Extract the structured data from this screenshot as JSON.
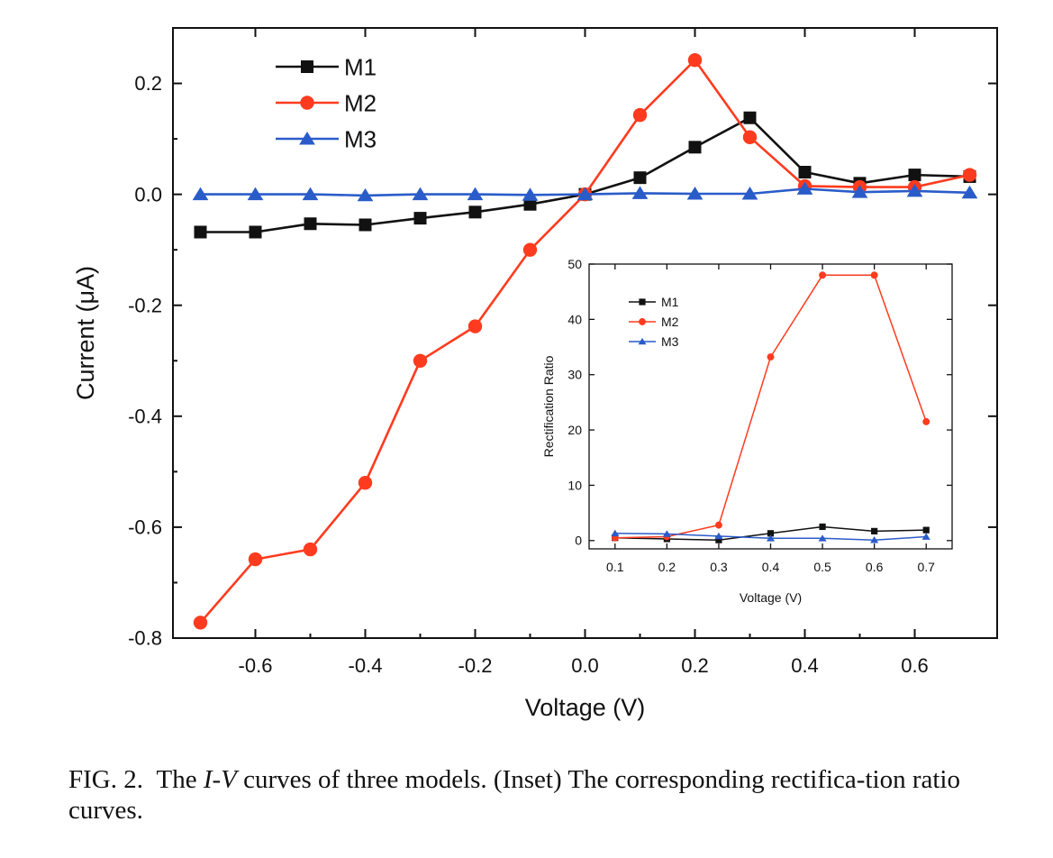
{
  "chart_data": [
    {
      "type": "line",
      "xlabel": "Voltage (V)",
      "ylabel": "Current (μA)",
      "xlim": [
        -0.75,
        0.75
      ],
      "ylim": [
        -0.8,
        0.3
      ],
      "xticks": [
        "-0.6",
        "-0.4",
        "-0.2",
        "0.0",
        "0.2",
        "0.4",
        "0.6"
      ],
      "xtick_values": [
        -0.6,
        -0.4,
        -0.2,
        0.0,
        0.2,
        0.4,
        0.6
      ],
      "yticks": [
        "0.2",
        "0.0",
        "-0.2",
        "-0.4",
        "-0.6",
        "-0.8"
      ],
      "ytick_values": [
        0.2,
        0.0,
        -0.2,
        -0.4,
        -0.6,
        -0.8
      ],
      "grid": false,
      "legend_position": "top-left",
      "x": [
        -0.7,
        -0.6,
        -0.5,
        -0.4,
        -0.3,
        -0.2,
        -0.1,
        0.0,
        0.1,
        0.2,
        0.3,
        0.4,
        0.5,
        0.6,
        0.7
      ],
      "series": [
        {
          "name": "M1",
          "color": "#111111",
          "marker": "square",
          "values": [
            -0.068,
            -0.068,
            -0.053,
            -0.055,
            -0.043,
            -0.032,
            -0.018,
            0.0,
            0.03,
            0.085,
            0.138,
            0.04,
            0.02,
            0.035,
            0.032
          ]
        },
        {
          "name": "M2",
          "color": "#ff3b1f",
          "marker": "circle",
          "values": [
            -0.772,
            -0.658,
            -0.64,
            -0.52,
            -0.3,
            -0.238,
            -0.1,
            0.0,
            0.143,
            0.242,
            0.103,
            0.015,
            0.013,
            0.013,
            0.035
          ]
        },
        {
          "name": "M3",
          "color": "#2a5cc9",
          "marker": "triangle",
          "values": [
            0.0,
            0.0,
            0.0,
            -0.002,
            0.0,
            0.0,
            -0.001,
            0.0,
            0.002,
            0.001,
            0.001,
            0.01,
            0.004,
            0.006,
            0.003
          ]
        }
      ]
    },
    {
      "type": "line",
      "xlabel": "Voltage (V)",
      "ylabel": "Rectification Ratio",
      "xlim": [
        0.05,
        0.75
      ],
      "ylim": [
        -1.5,
        50
      ],
      "xticks": [
        "0.1",
        "0.2",
        "0.3",
        "0.4",
        "0.5",
        "0.6",
        "0.7"
      ],
      "xtick_values": [
        0.1,
        0.2,
        0.3,
        0.4,
        0.5,
        0.6,
        0.7
      ],
      "yticks": [
        "50",
        "40",
        "30",
        "20",
        "10",
        "0"
      ],
      "ytick_values": [
        50,
        40,
        30,
        20,
        10,
        0
      ],
      "grid": false,
      "legend_position": "top-left",
      "x": [
        0.1,
        0.2,
        0.3,
        0.4,
        0.5,
        0.6,
        0.7
      ],
      "series": [
        {
          "name": "M1",
          "color": "#111111",
          "marker": "square",
          "values": [
            0.5,
            0.3,
            0.1,
            1.3,
            2.5,
            1.7,
            1.9
          ]
        },
        {
          "name": "M2",
          "color": "#ff3b1f",
          "marker": "circle",
          "values": [
            0.5,
            0.7,
            2.8,
            33.2,
            48.0,
            48.0,
            21.5
          ]
        },
        {
          "name": "M3",
          "color": "#2a5cc9",
          "marker": "triangle",
          "values": [
            1.3,
            1.2,
            0.8,
            0.4,
            0.4,
            0.1,
            0.7
          ]
        }
      ]
    }
  ],
  "caption": {
    "label": "FIG. 2.",
    "pre": "The ",
    "iv": "I-V",
    "post": " curves of three models. (Inset) The corresponding rectifica-tion ratio curves."
  }
}
